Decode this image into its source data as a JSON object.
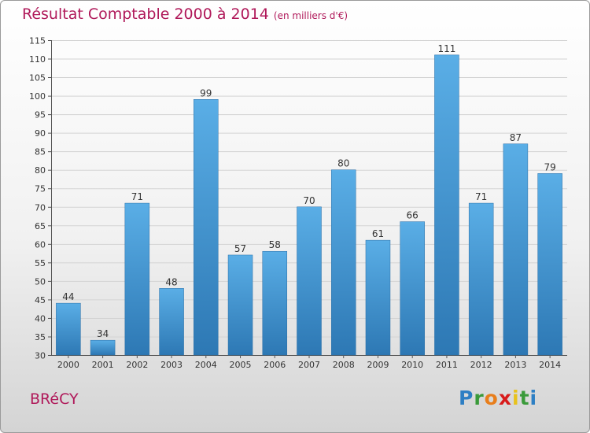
{
  "chart_data": {
    "type": "bar",
    "title": "Résultat Comptable 2000 à 2014",
    "subtitle": "(en milliers d'€)",
    "categories": [
      "2000",
      "2001",
      "2002",
      "2003",
      "2004",
      "2005",
      "2006",
      "2007",
      "2008",
      "2009",
      "2010",
      "2011",
      "2012",
      "2013",
      "2014"
    ],
    "values": [
      44,
      34,
      71,
      48,
      99,
      57,
      58,
      70,
      80,
      61,
      66,
      111,
      71,
      87,
      79
    ],
    "ylim": [
      30,
      115
    ],
    "yticks": [
      30,
      35,
      40,
      45,
      50,
      55,
      60,
      65,
      70,
      75,
      80,
      85,
      90,
      95,
      100,
      105,
      110,
      115
    ],
    "grid": true,
    "xlabel": "",
    "ylabel": ""
  },
  "commune": "BRéCY",
  "logo": {
    "letters": [
      "P",
      "r",
      "o",
      "x",
      "i",
      "t",
      "i"
    ],
    "colors": [
      "#2e7fc4",
      "#3a9a3a",
      "#e87e1c",
      "#d81b1b",
      "#e8c21c",
      "#3a9a3a",
      "#2e7fc4"
    ]
  },
  "colors": {
    "bar_top": "#5aaee6",
    "bar_bottom": "#2d78b4",
    "accent": "#b0195a"
  }
}
